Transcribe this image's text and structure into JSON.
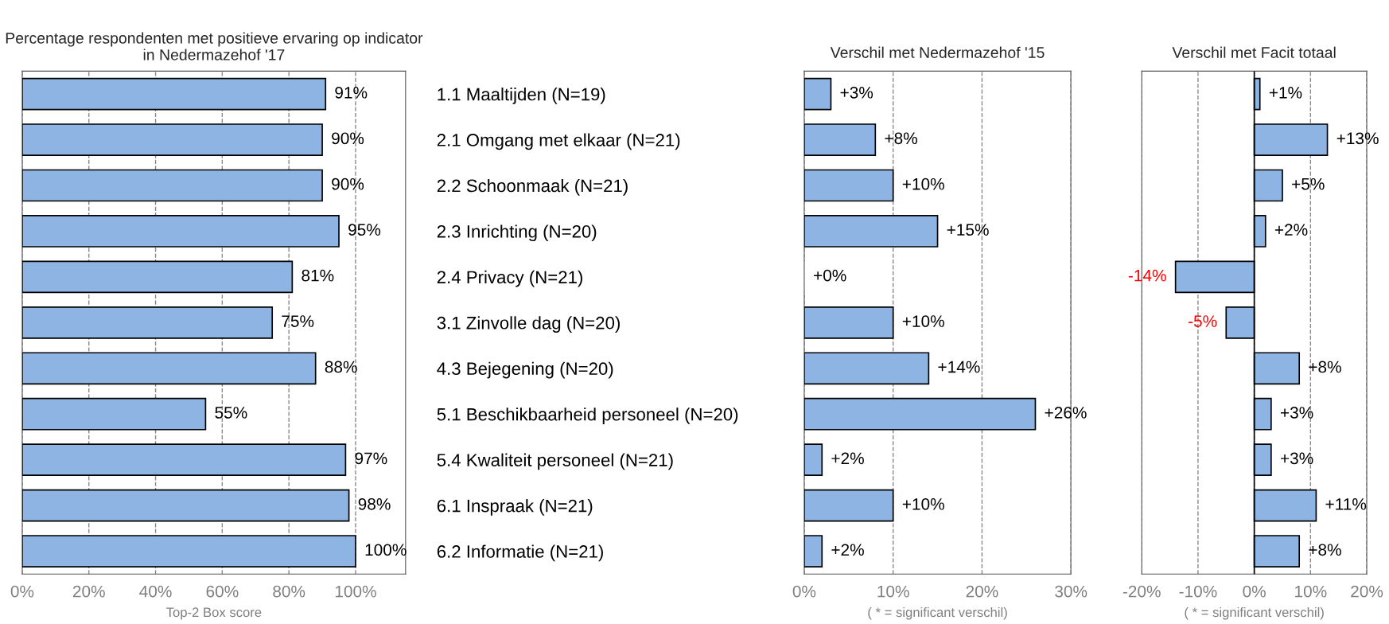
{
  "chart_data": [
    {
      "type": "bar",
      "orientation": "horizontal",
      "title": "Percentage respondenten met positieve ervaring op indicator in Nedermazehof '17",
      "xlabel": "Top-2 Box score",
      "categories": [
        "1.1 Maaltijden (N=19)",
        "2.1 Omgang met elkaar (N=21)",
        "2.2 Schoonmaak (N=21)",
        "2.3 Inrichting (N=20)",
        "2.4 Privacy (N=21)",
        "3.1 Zinvolle dag (N=20)",
        "4.3 Bejegening (N=20)",
        "5.1 Beschikbaarheid personeel (N=20)",
        "5.4 Kwaliteit personeel (N=21)",
        "6.1 Inspraak (N=21)",
        "6.2 Informatie (N=21)"
      ],
      "values": [
        91,
        90,
        90,
        95,
        81,
        75,
        88,
        55,
        97,
        98,
        100
      ],
      "value_labels": [
        "91%",
        "90%",
        "90%",
        "95%",
        "81%",
        "75%",
        "88%",
        "55%",
        "97%",
        "98%",
        "100%"
      ],
      "color": "#8db4e2",
      "xlim": [
        0,
        115
      ],
      "xticks": [
        {
          "value": 0,
          "label": "0%"
        },
        {
          "value": 20,
          "label": "20%"
        },
        {
          "value": 40,
          "label": "40%"
        },
        {
          "value": 60,
          "label": "60%"
        },
        {
          "value": 80,
          "label": "80%"
        },
        {
          "value": 100,
          "label": "100%"
        }
      ],
      "grid": "x"
    },
    {
      "type": "bar",
      "orientation": "horizontal",
      "title": "Verschil met Nedermazehof '15",
      "xlabel": "( * = significant verschil)",
      "categories": [
        null,
        null,
        null,
        null,
        null,
        null,
        null,
        null,
        null,
        null,
        null
      ],
      "values": [
        3,
        8,
        10,
        15,
        0,
        10,
        14,
        26,
        2,
        10,
        2
      ],
      "value_labels": [
        "+3%",
        "+8%",
        "+10%",
        "+15%",
        "+0%",
        "+10%",
        "+14%",
        "+26%",
        "+2%",
        "+10%",
        "+2%"
      ],
      "color": "#8db4e2",
      "xlim": [
        0,
        30
      ],
      "xticks": [
        {
          "value": 0,
          "label": "0%"
        },
        {
          "value": 10,
          "label": "10%"
        },
        {
          "value": 20,
          "label": "20%"
        },
        {
          "value": 30,
          "label": "30%"
        }
      ],
      "grid": "x",
      "tick_labels": "x"
    },
    {
      "type": "bar",
      "orientation": "horizontal",
      "title": "Verschil met Facit totaal",
      "xlabel": "( * = significant verschil)",
      "categories": [
        null,
        null,
        null,
        null,
        null,
        null,
        null,
        null,
        null,
        null,
        null
      ],
      "values": [
        1,
        13,
        5,
        2,
        -14,
        -5,
        8,
        3,
        3,
        11,
        8
      ],
      "value_labels": [
        "+1%",
        "+13%",
        "+5%",
        "+2%",
        "-14%",
        "-5%",
        "+8%",
        "+3%",
        "+3%",
        "+11%",
        "+8%"
      ],
      "color": "#8db4e2",
      "xlim": [
        -20,
        20
      ],
      "xticks": [
        {
          "value": -20,
          "label": "-20%"
        },
        {
          "value": -10,
          "label": "-10%"
        },
        {
          "value": 0,
          "label": "0%"
        },
        {
          "value": 10,
          "label": "10%"
        },
        {
          "value": 20,
          "label": "20%"
        }
      ],
      "grid": "x",
      "tick_labels": "x"
    }
  ]
}
